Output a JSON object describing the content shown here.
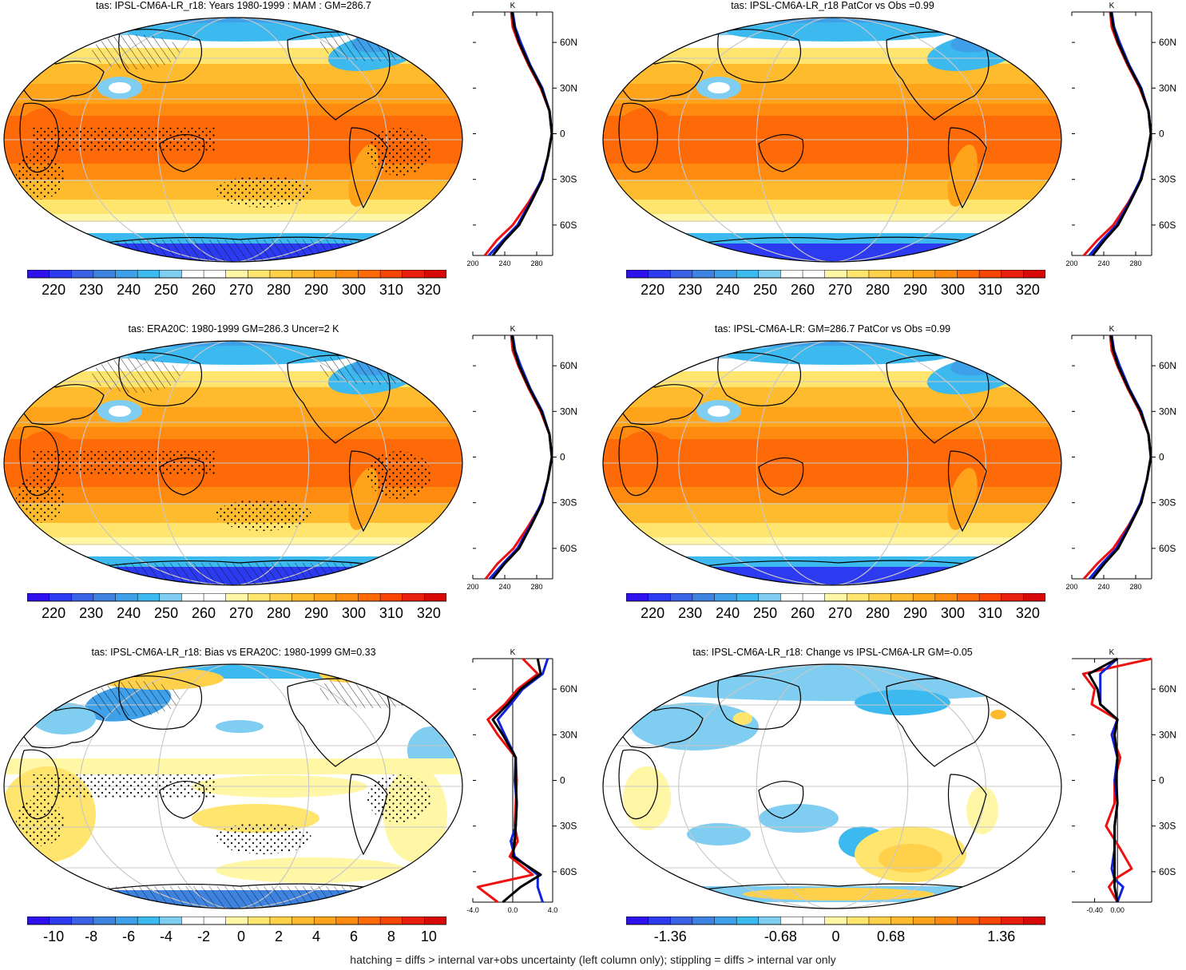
{
  "panels": [
    {
      "title": "tas: IPSL-CM6A-LR_r18: Years 1980-1999 : MAM : GM=286.7",
      "kind": "abs",
      "hatch": true,
      "stipple": true,
      "cbar_labels": [
        "220",
        "230",
        "240",
        "250",
        "260",
        "270",
        "280",
        "290",
        "300",
        "310",
        "320"
      ],
      "profile": {
        "unit": "K",
        "xticks": [
          "200",
          "240",
          "280"
        ],
        "xlim": [
          200,
          300
        ],
        "ylabels": [
          "60N",
          "30N",
          "0",
          "30S",
          "60S"
        ]
      }
    },
    {
      "title": "tas: IPSL-CM6A-LR_r18 PatCor vs Obs =0.99",
      "kind": "abs",
      "hatch": false,
      "stipple": false,
      "cbar_labels": [
        "220",
        "230",
        "240",
        "250",
        "260",
        "270",
        "280",
        "290",
        "300",
        "310",
        "320"
      ],
      "profile": {
        "unit": "K",
        "xticks": [
          "200",
          "240",
          "280"
        ],
        "xlim": [
          200,
          300
        ],
        "ylabels": [
          "60N",
          "30N",
          "0",
          "30S",
          "60S"
        ]
      }
    },
    {
      "title": "tas: ERA20C: 1980-1999 GM=286.3 Uncer=2 K",
      "kind": "abs",
      "hatch": true,
      "stipple": true,
      "cbar_labels": [
        "220",
        "230",
        "240",
        "250",
        "260",
        "270",
        "280",
        "290",
        "300",
        "310",
        "320"
      ],
      "profile": {
        "unit": "K",
        "xticks": [
          "200",
          "240",
          "280"
        ],
        "xlim": [
          200,
          300
        ],
        "ylabels": [
          "60N",
          "30N",
          "0",
          "30S",
          "60S"
        ]
      }
    },
    {
      "title": "tas: IPSL-CM6A-LR: GM=286.7 PatCor vs Obs =0.99",
      "kind": "abs",
      "hatch": false,
      "stipple": false,
      "cbar_labels": [
        "220",
        "230",
        "240",
        "250",
        "260",
        "270",
        "280",
        "290",
        "300",
        "310",
        "320"
      ],
      "profile": {
        "unit": "K",
        "xticks": [
          "200",
          "240",
          "280"
        ],
        "xlim": [
          200,
          300
        ],
        "ylabels": [
          "60N",
          "30N",
          "0",
          "30S",
          "60S"
        ]
      }
    },
    {
      "title": "tas: IPSL-CM6A-LR_r18: Bias vs ERA20C: 1980-1999 GM=0.33",
      "kind": "bias",
      "hatch": true,
      "stipple": true,
      "cbar_labels": [
        "-10",
        "-8",
        "-6",
        "-4",
        "-2",
        "0",
        "2",
        "4",
        "6",
        "8",
        "10"
      ],
      "profile": {
        "unit": "K",
        "xticks": [
          "-4.0",
          "0.0",
          "4.0"
        ],
        "xlim": [
          -4,
          4
        ],
        "ylabels": [
          "60N",
          "30N",
          "0",
          "30S",
          "60S"
        ]
      }
    },
    {
      "title": "tas: IPSL-CM6A-LR_r18: Change vs IPSL-CM6A-LR GM=-0.05",
      "kind": "change",
      "hatch": false,
      "stipple": false,
      "cbar_labels": [
        "-1.36",
        "-0.68",
        "0",
        "0.68",
        "1.36"
      ],
      "profile": {
        "unit": "K",
        "xticks": [
          "-0.40",
          "0.00"
        ],
        "xlim": [
          -0.8,
          0.6
        ],
        "ylabels": [
          "60N",
          "30N",
          "0",
          "30S",
          "60S"
        ]
      }
    }
  ],
  "footer": "hatching = diffs > internal var+obs uncertainty (left column only); stippling = diffs > internal var only",
  "colors": {
    "abs_scale": [
      "#2f10ef",
      "#2d3bf0",
      "#3a62e6",
      "#3f83e0",
      "#3f9fe8",
      "#3cb9ee",
      "#7fcdf0",
      "#ffffff",
      "#ffffff",
      "#fff6a6",
      "#ffe46e",
      "#ffd04a",
      "#ffbb2e",
      "#ffa31a",
      "#ff8a10",
      "#ff6a08",
      "#f84404",
      "#e81f0e",
      "#d80808"
    ],
    "diff_scale": [
      "#2f10ef",
      "#2d3bf0",
      "#3a62e6",
      "#3f83e0",
      "#3f9fe8",
      "#3cb9ee",
      "#7fcdf0",
      "#ffffff",
      "#ffffff",
      "#fff6a6",
      "#ffe46e",
      "#ffd04a",
      "#ffbb2e",
      "#ffa31a",
      "#ff8a10",
      "#ff6a08",
      "#f84404",
      "#e81f0e",
      "#d80808"
    ],
    "model": "#000000",
    "obs": "#ee1111",
    "alt": "#1122dd"
  },
  "chart_data": [
    {
      "type": "heatmap",
      "title": "tas: IPSL-CM6A-LR_r18: Years 1980-1999 : MAM : GM=286.7",
      "colorbar_ticks": [
        220,
        230,
        240,
        250,
        260,
        270,
        280,
        290,
        300,
        310,
        320
      ],
      "profile": {
        "unit": "K",
        "xlim": [
          200,
          300
        ],
        "lat": [
          -80,
          -70,
          -60,
          -45,
          -30,
          -15,
          0,
          15,
          30,
          45,
          60,
          70,
          80
        ],
        "series": [
          {
            "values": [
              215,
              230,
              250,
              270,
              287,
              294,
              299,
              296,
              285,
              270,
              257,
              250,
              248
            ]
          },
          {
            "values": [
              220,
              238,
              256,
              272,
              286,
              294,
              299,
              296,
              287,
              272,
              260,
              253,
              250
            ]
          },
          {
            "values": [
              225,
              240,
              258,
              273,
              287,
              294,
              299,
              296,
              286,
              271,
              258,
              252,
              249
            ]
          }
        ]
      }
    },
    {
      "type": "heatmap",
      "title": "tas: IPSL-CM6A-LR_r18 PatCor vs Obs =0.99",
      "colorbar_ticks": [
        220,
        230,
        240,
        250,
        260,
        270,
        280,
        290,
        300,
        310,
        320
      ],
      "profile": {
        "unit": "K",
        "xlim": [
          200,
          300
        ],
        "lat": [
          -80,
          -70,
          -60,
          -45,
          -30,
          -15,
          0,
          15,
          30,
          45,
          60,
          70,
          80
        ],
        "series": [
          {
            "values": [
              215,
              232,
              252,
              271,
              287,
              294,
              299,
              296,
              285,
              270,
              257,
              250,
              248
            ]
          },
          {
            "values": [
              222,
              238,
              256,
              272,
              286,
              294,
              299,
              296,
              287,
              272,
              260,
              253,
              250
            ]
          },
          {
            "values": [
              226,
              241,
              258,
              273,
              287,
              294,
              299,
              296,
              286,
              271,
              258,
              252,
              249
            ]
          }
        ]
      }
    },
    {
      "type": "heatmap",
      "title": "tas: ERA20C: 1980-1999 GM=286.3 Uncer=2 K",
      "colorbar_ticks": [
        220,
        230,
        240,
        250,
        260,
        270,
        280,
        290,
        300,
        310,
        320
      ],
      "profile": {
        "unit": "K",
        "xlim": [
          200,
          300
        ],
        "lat": [
          -80,
          -70,
          -60,
          -45,
          -30,
          -15,
          0,
          15,
          30,
          45,
          60,
          70,
          80
        ],
        "series": [
          {
            "values": [
              216,
              231,
              251,
              270,
              287,
              294,
              299,
              296,
              285,
              270,
              257,
              250,
              248
            ]
          },
          {
            "values": [
              221,
              238,
              256,
              272,
              286,
              294,
              299,
              296,
              287,
              272,
              260,
              253,
              250
            ]
          },
          {
            "values": [
              225,
              240,
              258,
              273,
              287,
              294,
              299,
              296,
              286,
              271,
              258,
              252,
              249
            ]
          }
        ]
      }
    },
    {
      "type": "heatmap",
      "title": "tas: IPSL-CM6A-LR: GM=286.7 PatCor vs Obs =0.99",
      "colorbar_ticks": [
        220,
        230,
        240,
        250,
        260,
        270,
        280,
        290,
        300,
        310,
        320
      ],
      "profile": {
        "unit": "K",
        "xlim": [
          200,
          300
        ],
        "lat": [
          -80,
          -70,
          -60,
          -45,
          -30,
          -15,
          0,
          15,
          30,
          45,
          60,
          70,
          80
        ],
        "series": [
          {
            "values": [
              215,
              232,
              252,
              271,
              287,
              294,
              299,
              296,
              285,
              270,
              257,
              250,
              248
            ]
          },
          {
            "values": [
              222,
              238,
              256,
              272,
              286,
              294,
              299,
              296,
              287,
              272,
              260,
              253,
              250
            ]
          },
          {
            "values": [
              226,
              241,
              258,
              273,
              287,
              294,
              299,
              296,
              286,
              271,
              258,
              252,
              249
            ]
          }
        ]
      }
    },
    {
      "type": "heatmap",
      "title": "tas: IPSL-CM6A-LR_r18: Bias vs ERA20C: 1980-1999 GM=0.33",
      "colorbar_ticks": [
        -10,
        -8,
        -6,
        -4,
        -2,
        0,
        2,
        4,
        6,
        8,
        10
      ],
      "profile": {
        "unit": "K",
        "xlim": [
          -4,
          4
        ],
        "lat": [
          -80,
          -70,
          -62,
          -50,
          -40,
          -30,
          -15,
          0,
          15,
          30,
          40,
          50,
          60,
          70,
          80
        ],
        "series": [
          {
            "values": [
              -1.5,
              -3.5,
              2.0,
              -0.3,
              0.5,
              0.2,
              0.3,
              0.4,
              0.3,
              -1.5,
              -2.5,
              -0.8,
              0.5,
              2.5,
              1.0
            ]
          },
          {
            "values": [
              3.0,
              2.5,
              2.5,
              0.2,
              -0.2,
              0.3,
              0.4,
              0.2,
              0.3,
              -0.8,
              -1.5,
              -0.2,
              1.0,
              3.0,
              3.5
            ]
          },
          {
            "values": [
              -1.0,
              0.8,
              2.8,
              0.0,
              0.2,
              0.3,
              0.4,
              0.3,
              0.3,
              -1.0,
              -2.0,
              -0.5,
              0.8,
              2.8,
              2.5
            ]
          }
        ]
      }
    },
    {
      "type": "heatmap",
      "title": "tas: IPSL-CM6A-LR_r18: Change vs IPSL-CM6A-LR GM=-0.05",
      "colorbar_ticks": [
        -1.36,
        -0.68,
        0,
        0.68,
        1.36
      ],
      "profile": {
        "unit": "K",
        "xlim": [
          -0.8,
          0.6
        ],
        "lat": [
          -80,
          -70,
          -65,
          -58,
          -45,
          -30,
          -15,
          0,
          15,
          30,
          40,
          50,
          60,
          70,
          80
        ],
        "series": [
          {
            "values": [
              0.0,
              -0.15,
              -0.05,
              0.25,
              0.05,
              -0.2,
              -0.05,
              -0.05,
              0.05,
              -0.1,
              0.0,
              -0.45,
              -0.4,
              -0.6,
              0.6
            ]
          },
          {
            "values": [
              0.0,
              0.1,
              -0.05,
              -0.1,
              -0.05,
              -0.05,
              0.0,
              -0.05,
              0.0,
              -0.1,
              0.0,
              -0.3,
              -0.3,
              -0.3,
              0.0
            ]
          },
          {
            "values": [
              0.0,
              -0.05,
              -0.05,
              -0.05,
              -0.05,
              -0.05,
              0.0,
              -0.02,
              0.0,
              -0.05,
              0.0,
              -0.3,
              -0.35,
              -0.5,
              0.0
            ]
          }
        ]
      }
    }
  ]
}
